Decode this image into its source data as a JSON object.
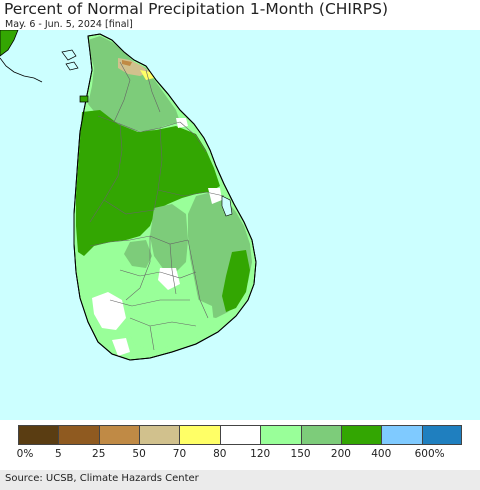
{
  "header": {
    "title": "Percent of Normal Precipitation 1-Month (CHIRPS)",
    "subtitle": "May. 6 - Jun. 5, 2024 [final]"
  },
  "map": {
    "ocean_color": "#ccffff",
    "land_outline_color": "#000000",
    "district_line_color": "#666666"
  },
  "legend": {
    "colors": [
      "#5a3d12",
      "#8f5a20",
      "#c08a45",
      "#d1c18d",
      "#ffff66",
      "#ffffff",
      "#99ff99",
      "#7dcc7a",
      "#33a602",
      "#7fcaff",
      "#1f7fbf"
    ],
    "tick_labels": [
      "0%",
      "5",
      "25",
      "50",
      "70",
      "80",
      "120",
      "150",
      "200",
      "400",
      "600%"
    ]
  },
  "footer": {
    "source": "Source: UCSB, Climate Hazards Center"
  }
}
